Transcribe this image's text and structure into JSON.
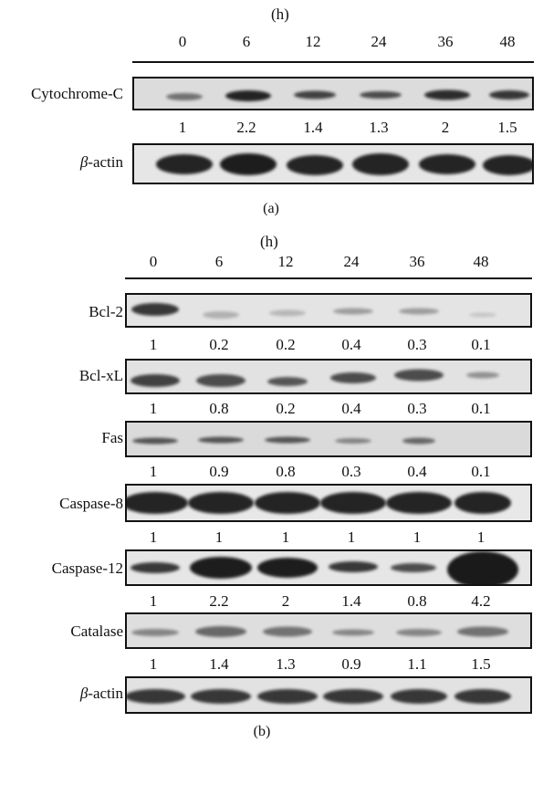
{
  "panel_a": {
    "unit": "(h)",
    "timepoints": [
      "0",
      "6",
      "12",
      "24",
      "36",
      "48"
    ],
    "rows": [
      {
        "label": "Cytochrome-C",
        "values": [
          "1",
          "2.2",
          "1.4",
          "1.3",
          "2",
          "1.5"
        ]
      },
      {
        "label_prefix": "β",
        "label_suffix": "-actin",
        "values": []
      }
    ],
    "caption": "(a)"
  },
  "panel_b": {
    "unit": "(h)",
    "timepoints": [
      "0",
      "6",
      "12",
      "24",
      "36",
      "48"
    ],
    "rows": [
      {
        "label": "Bcl-2",
        "values": [
          "1",
          "0.2",
          "0.2",
          "0.4",
          "0.3",
          "0.1"
        ]
      },
      {
        "label": "Bcl-xL",
        "values": [
          "1",
          "0.8",
          "0.2",
          "0.4",
          "0.3",
          "0.1"
        ]
      },
      {
        "label": "Fas",
        "values": [
          "1",
          "0.9",
          "0.8",
          "0.3",
          "0.4",
          "0.1"
        ]
      },
      {
        "label": "Caspase-8",
        "values": [
          "1",
          "1",
          "1",
          "1",
          "1",
          "1"
        ]
      },
      {
        "label": "Caspase-12",
        "values": [
          "1",
          "2.2",
          "2",
          "1.4",
          "0.8",
          "4.2"
        ]
      },
      {
        "label": "Catalase",
        "values": [
          "1",
          "1.4",
          "1.3",
          "0.9",
          "1.1",
          "1.5"
        ]
      },
      {
        "label_prefix": "β",
        "label_suffix": "-actin",
        "values": []
      }
    ],
    "caption": "(b)"
  },
  "colors": {
    "background": "#ffffff",
    "blot_background": "#d8d8d8",
    "band": "#1a1a1a"
  }
}
